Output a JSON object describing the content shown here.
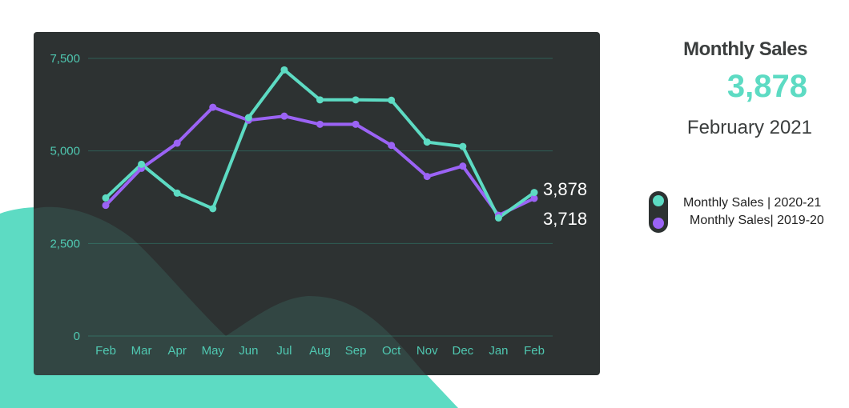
{
  "header": {
    "title": "Monthly Sales",
    "value": "3,878",
    "period": "February 2021"
  },
  "colors": {
    "series_2020_21": "#5ddbc3",
    "series_2019_20": "#9b63f5",
    "panel": "#2d3232",
    "grid": "#2f5e55",
    "tick": "#4fc7b0",
    "end_label": "#ffffff"
  },
  "legend": [
    {
      "label": "Monthly Sales | 2020-21",
      "color": "#5ddbc3"
    },
    {
      "label": "Monthly Sales| 2019-20",
      "color": "#9b63f5"
    }
  ],
  "chart_data": {
    "type": "line",
    "categories": [
      "Feb",
      "Mar",
      "Apr",
      "May",
      "Jun",
      "Jul",
      "Aug",
      "Sep",
      "Oct",
      "Nov",
      "Dec",
      "Jan",
      "Feb"
    ],
    "yticks": [
      "0",
      "2,500",
      "5,000",
      "7,500"
    ],
    "ylim": [
      0,
      7500
    ],
    "grid": true,
    "series": [
      {
        "name": "Monthly Sales | 2020-21",
        "color": "#5ddbc3",
        "values": [
          3730,
          4640,
          3860,
          3440,
          5900,
          7190,
          6380,
          6380,
          6370,
          5240,
          5120,
          3190,
          3878
        ],
        "end_label": "3,878"
      },
      {
        "name": "Monthly Sales| 2019-20",
        "color": "#9b63f5",
        "values": [
          3530,
          4530,
          5210,
          6180,
          5830,
          5940,
          5720,
          5720,
          5150,
          4310,
          4590,
          3260,
          3718
        ],
        "end_label": "3,718"
      }
    ]
  }
}
